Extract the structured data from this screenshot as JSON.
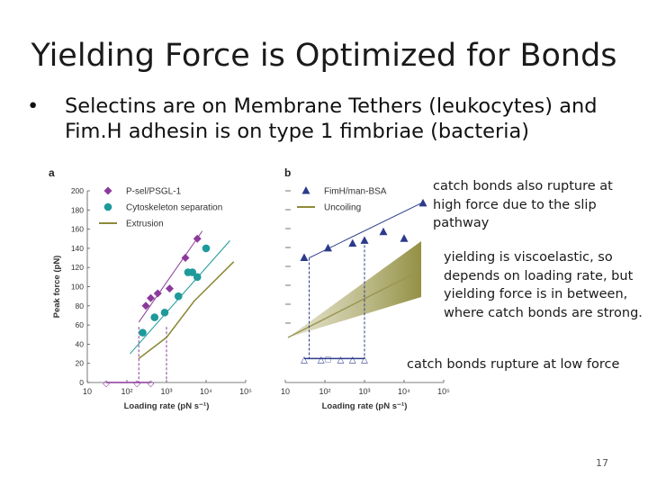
{
  "slide": {
    "title": "Yielding Force is Optimized for Bonds",
    "bullet": "Selectins are on Membrane Tethers (leukocytes) and Fim.H adhesin is on type 1 fimbriae (bacteria)",
    "bullet_symbol": "•",
    "annotations": [
      "catch bonds also rupture at high force due to the slip pathway",
      "yielding is viscoelastic, so depends on loading rate, but yielding force is in between, where catch bonds are strong.",
      "catch bonds rupture at low force"
    ],
    "page_number": "17"
  },
  "chart_data": [
    {
      "panel": "a",
      "type": "scatter",
      "xlabel": "Loading rate (pN s⁻¹)",
      "ylabel": "Peak force (pN)",
      "x_scale": "log",
      "xlim": [
        10,
        100000
      ],
      "ylim": [
        0,
        200
      ],
      "x_ticks": [
        "10",
        "10²",
        "10³",
        "10⁴",
        "10⁵"
      ],
      "y_ticks": [
        "0",
        "20",
        "40",
        "60",
        "80",
        "100",
        "120",
        "140",
        "160",
        "180",
        "200"
      ],
      "legend_position": "top-left",
      "colors": {
        "psel": "#8b3a9b",
        "cyto": "#1e9a9a",
        "extrusion": "#8e8a3a"
      },
      "series": [
        {
          "name": "P-sel/PSGL-1",
          "marker": "diamond",
          "points": [
            [
              300,
              80
            ],
            [
              400,
              88
            ],
            [
              600,
              93
            ],
            [
              1200,
              98
            ],
            [
              3000,
              130
            ],
            [
              6000,
              150
            ]
          ]
        },
        {
          "name": "Cytoskeleton separation",
          "marker": "circle",
          "points": [
            [
              250,
              52
            ],
            [
              500,
              68
            ],
            [
              900,
              73
            ],
            [
              2000,
              90
            ],
            [
              3500,
              115
            ],
            [
              4500,
              115
            ],
            [
              6000,
              110
            ],
            [
              10000,
              140
            ]
          ]
        },
        {
          "name": "Extrusion",
          "marker": "line",
          "points": [
            [
              200,
              25
            ],
            [
              1000,
              47
            ],
            [
              5000,
              85
            ],
            [
              50000,
              126
            ]
          ]
        }
      ],
      "fits": [
        {
          "series": "P-sel/PSGL-1",
          "points": [
            [
              200,
              63
            ],
            [
              8000,
              158
            ]
          ]
        },
        {
          "series": "Cytoskeleton separation",
          "points": [
            [
              120,
              30
            ],
            [
              40000,
              148
            ]
          ]
        }
      ],
      "bottom_markers": {
        "points": [
          [
            30,
            0
          ],
          [
            180,
            0
          ],
          [
            400,
            0
          ]
        ],
        "markers": [
          "◇",
          "◇",
          "◇"
        ]
      },
      "guides": [
        {
          "points": [
            [
              200,
              58
            ],
            [
              200,
              0
            ]
          ]
        },
        {
          "points": [
            [
              1000,
              58
            ],
            [
              1000,
              0
            ]
          ]
        }
      ]
    },
    {
      "panel": "b",
      "type": "scatter",
      "xlabel": "Loading rate (pN s⁻¹)",
      "ylabel": "",
      "x_scale": "log",
      "xlim": [
        10,
        100000
      ],
      "ylim": [
        0,
        200
      ],
      "x_ticks": [
        "10",
        "10²",
        "10³",
        "10⁴",
        "10⁵"
      ],
      "legend_position": "top-left",
      "colors": {
        "fimh": "#2c3a8c",
        "uncoiling": "#8e8a3a"
      },
      "series": [
        {
          "name": "FimH/man-BSA",
          "marker": "triangle",
          "points": [
            [
              30,
              130
            ],
            [
              120,
              140
            ],
            [
              500,
              145
            ],
            [
              1000,
              148
            ],
            [
              3000,
              157
            ],
            [
              10000,
              150
            ],
            [
              30000,
              187
            ]
          ]
        },
        {
          "name": "Uncoiling",
          "marker": "line",
          "points": []
        }
      ],
      "fits": [
        {
          "series": "FimH/man-BSA",
          "points": [
            [
              40,
              130
            ],
            [
              30000,
              188
            ]
          ]
        }
      ],
      "bottom_markers": {
        "points": [
          [
            30,
            25
          ],
          [
            80,
            25
          ],
          [
            120,
            25
          ],
          [
            250,
            25
          ],
          [
            500,
            25
          ],
          [
            1000,
            25
          ]
        ],
        "markers": [
          "△",
          "△",
          "□",
          "△",
          "△",
          "△"
        ]
      },
      "guides": [
        {
          "points": [
            [
              40,
              130
            ],
            [
              40,
              25
            ]
          ]
        },
        {
          "points": [
            [
              1000,
              148
            ],
            [
              1000,
              25
            ]
          ]
        }
      ]
    }
  ]
}
